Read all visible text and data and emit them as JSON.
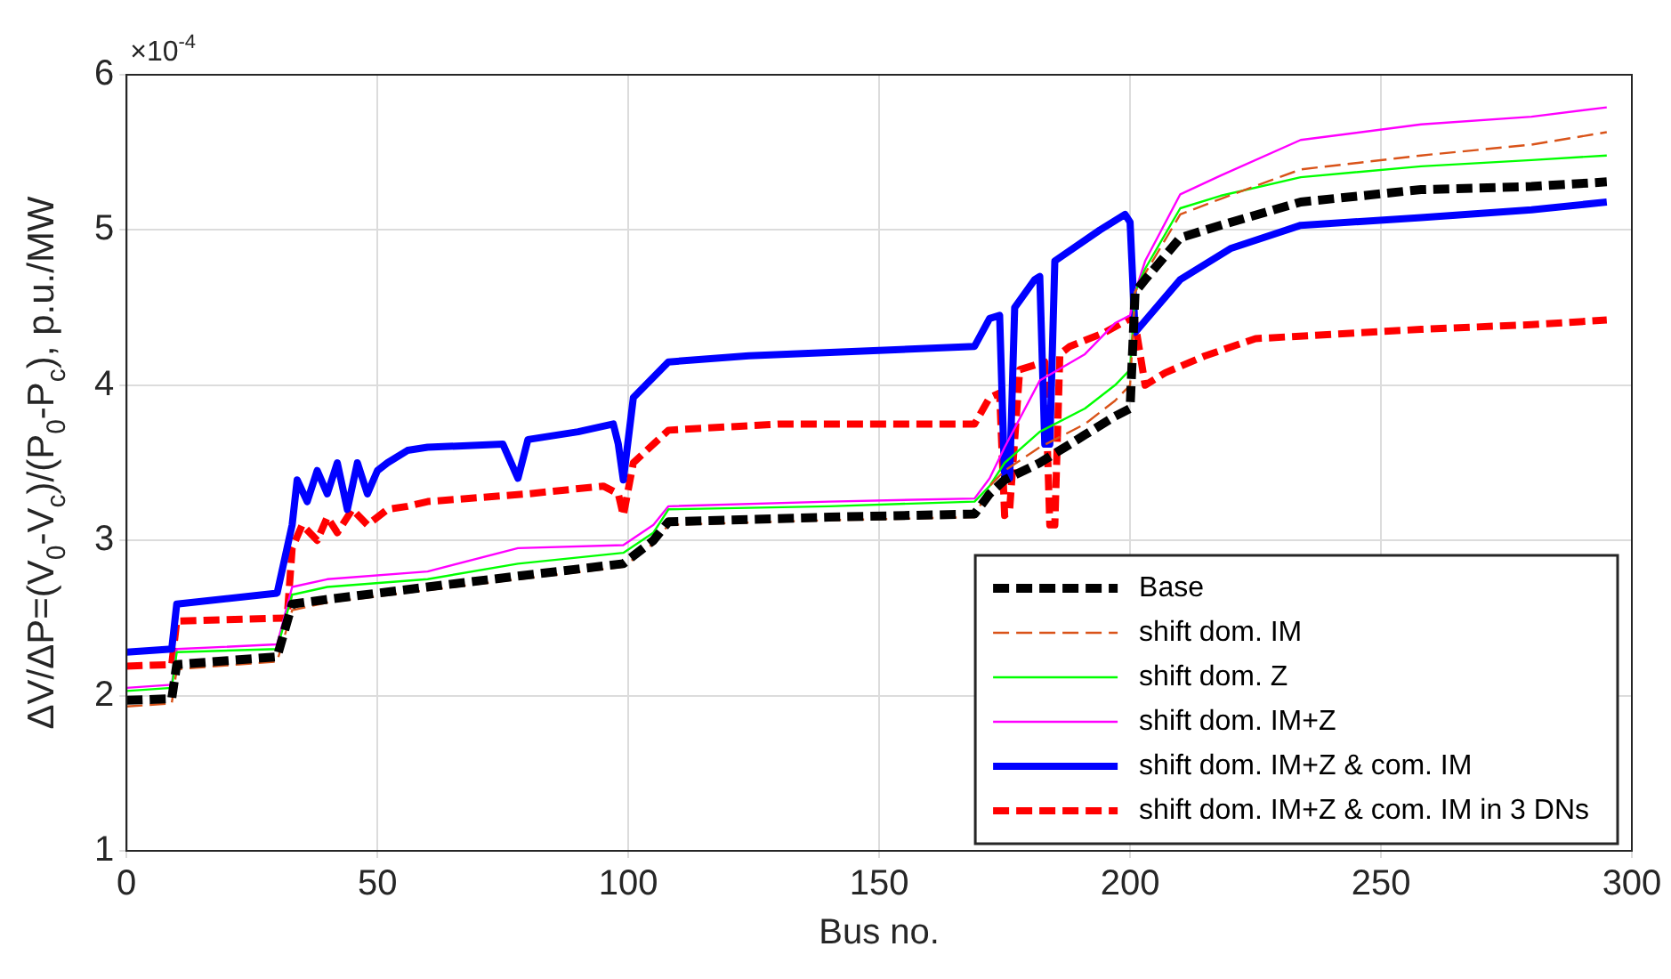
{
  "chart_data": {
    "type": "line",
    "xlabel": "Bus no.",
    "ylabel": "ΔV/ΔP=(V$_{0}$-V$_{c}$)/(P$_{0}$-P$_{c}$), p.u./MW",
    "annotations": [
      "×10$^{-4}$"
    ],
    "xlim": [
      0,
      300
    ],
    "xticks": [
      0,
      50,
      100,
      150,
      200,
      250,
      300
    ],
    "ylim": [
      1,
      6
    ],
    "yticks": [
      1,
      2,
      3,
      4,
      5,
      6
    ],
    "grid": true,
    "legend": "bottom right",
    "marker": "none",
    "series": [
      {
        "name": "Base",
        "color": "#000000",
        "line_style": "dashed",
        "x": [
          0,
          9,
          10,
          30,
          33,
          40,
          60,
          78,
          99,
          105,
          108,
          140,
          169,
          172,
          175,
          182,
          191,
          197,
          200,
          201,
          203,
          210,
          218,
          234,
          258,
          280,
          295
        ],
        "values": [
          1.97,
          1.98,
          2.2,
          2.25,
          2.59,
          2.62,
          2.7,
          2.77,
          2.85,
          3.0,
          3.12,
          3.15,
          3.17,
          3.3,
          3.39,
          3.5,
          3.68,
          3.8,
          3.85,
          4.6,
          4.68,
          4.95,
          5.03,
          5.18,
          5.26,
          5.28,
          5.31
        ]
      },
      {
        "name": "shift dom. IM",
        "color": "#d95319",
        "line_style": "dashed",
        "x": [
          0,
          9,
          10,
          30,
          33,
          40,
          60,
          78,
          99,
          105,
          108,
          140,
          169,
          172,
          175,
          182,
          191,
          197,
          200,
          201,
          203,
          210,
          218,
          234,
          258,
          280,
          295
        ],
        "values": [
          1.93,
          1.95,
          2.17,
          2.22,
          2.55,
          2.6,
          2.68,
          2.75,
          2.83,
          2.98,
          3.1,
          3.13,
          3.15,
          3.35,
          3.45,
          3.6,
          3.75,
          3.9,
          4.0,
          4.6,
          4.72,
          5.1,
          5.2,
          5.39,
          5.48,
          5.55,
          5.63
        ]
      },
      {
        "name": "shift dom. Z",
        "color": "#00ff00",
        "line_style": "solid",
        "x": [
          0,
          9,
          10,
          30,
          33,
          40,
          60,
          78,
          99,
          105,
          108,
          140,
          169,
          172,
          175,
          182,
          191,
          197,
          200,
          201,
          203,
          210,
          218,
          234,
          258,
          280,
          295
        ],
        "values": [
          2.03,
          2.05,
          2.28,
          2.3,
          2.65,
          2.7,
          2.75,
          2.85,
          2.92,
          3.05,
          3.2,
          3.22,
          3.25,
          3.35,
          3.5,
          3.7,
          3.85,
          4.0,
          4.1,
          4.6,
          4.75,
          5.14,
          5.22,
          5.34,
          5.41,
          5.45,
          5.48
        ]
      },
      {
        "name": "shift dom. IM+Z",
        "color": "#ff00ff",
        "line_style": "solid",
        "x": [
          0,
          9,
          10,
          30,
          33,
          40,
          60,
          78,
          99,
          105,
          108,
          140,
          169,
          172,
          175,
          182,
          191,
          197,
          200,
          201,
          203,
          210,
          218,
          234,
          258,
          280,
          295
        ],
        "values": [
          2.05,
          2.07,
          2.3,
          2.33,
          2.7,
          2.75,
          2.8,
          2.95,
          2.97,
          3.1,
          3.22,
          3.25,
          3.27,
          3.4,
          3.6,
          4.03,
          4.2,
          4.4,
          4.45,
          4.6,
          4.8,
          5.23,
          5.35,
          5.58,
          5.68,
          5.73,
          5.79
        ]
      },
      {
        "name": "shift dom. IM+Z & com. IM",
        "color": "#0000ff",
        "line_style": "solid",
        "x": [
          0,
          9,
          10,
          30,
          33,
          34,
          36,
          38,
          40,
          42,
          44,
          46,
          48,
          50,
          52,
          56,
          60,
          75,
          78,
          80,
          90,
          97,
          98,
          99,
          101,
          108,
          124,
          169,
          172,
          174,
          175,
          176,
          177,
          181,
          182,
          183,
          184,
          185,
          194,
          199,
          200,
          201,
          210,
          220,
          234,
          258,
          280,
          295
        ],
        "values": [
          2.28,
          2.3,
          2.59,
          2.66,
          3.1,
          3.39,
          3.25,
          3.45,
          3.3,
          3.5,
          3.2,
          3.5,
          3.3,
          3.45,
          3.5,
          3.58,
          3.6,
          3.62,
          3.4,
          3.65,
          3.7,
          3.75,
          3.62,
          3.39,
          3.92,
          4.15,
          4.19,
          4.25,
          4.43,
          4.45,
          3.39,
          3.4,
          4.5,
          4.68,
          4.7,
          3.62,
          3.62,
          4.8,
          5.0,
          5.1,
          5.05,
          4.34,
          4.68,
          4.88,
          5.03,
          5.08,
          5.13,
          5.18
        ]
      },
      {
        "name": "shift dom. IM+Z & com. IM in 3 DNs",
        "color": "#ff0000",
        "line_style": "dashed",
        "x": [
          0,
          9,
          10,
          32,
          33,
          35,
          38,
          40,
          42,
          45,
          48,
          52,
          56,
          60,
          80,
          95,
          98,
          99,
          101,
          108,
          130,
          169,
          172,
          174,
          175,
          176,
          178,
          183,
          184,
          185,
          186,
          188,
          195,
          200,
          201,
          203,
          207,
          215,
          225,
          258,
          280,
          295
        ],
        "values": [
          2.19,
          2.2,
          2.48,
          2.5,
          2.95,
          3.1,
          3.0,
          3.15,
          3.05,
          3.2,
          3.1,
          3.2,
          3.22,
          3.25,
          3.3,
          3.35,
          3.3,
          3.16,
          3.5,
          3.71,
          3.75,
          3.75,
          3.92,
          3.95,
          3.16,
          3.2,
          4.1,
          4.15,
          3.1,
          3.1,
          4.2,
          4.25,
          4.34,
          4.43,
          4.4,
          4.0,
          4.08,
          4.19,
          4.3,
          4.36,
          4.39,
          4.42
        ]
      }
    ]
  }
}
